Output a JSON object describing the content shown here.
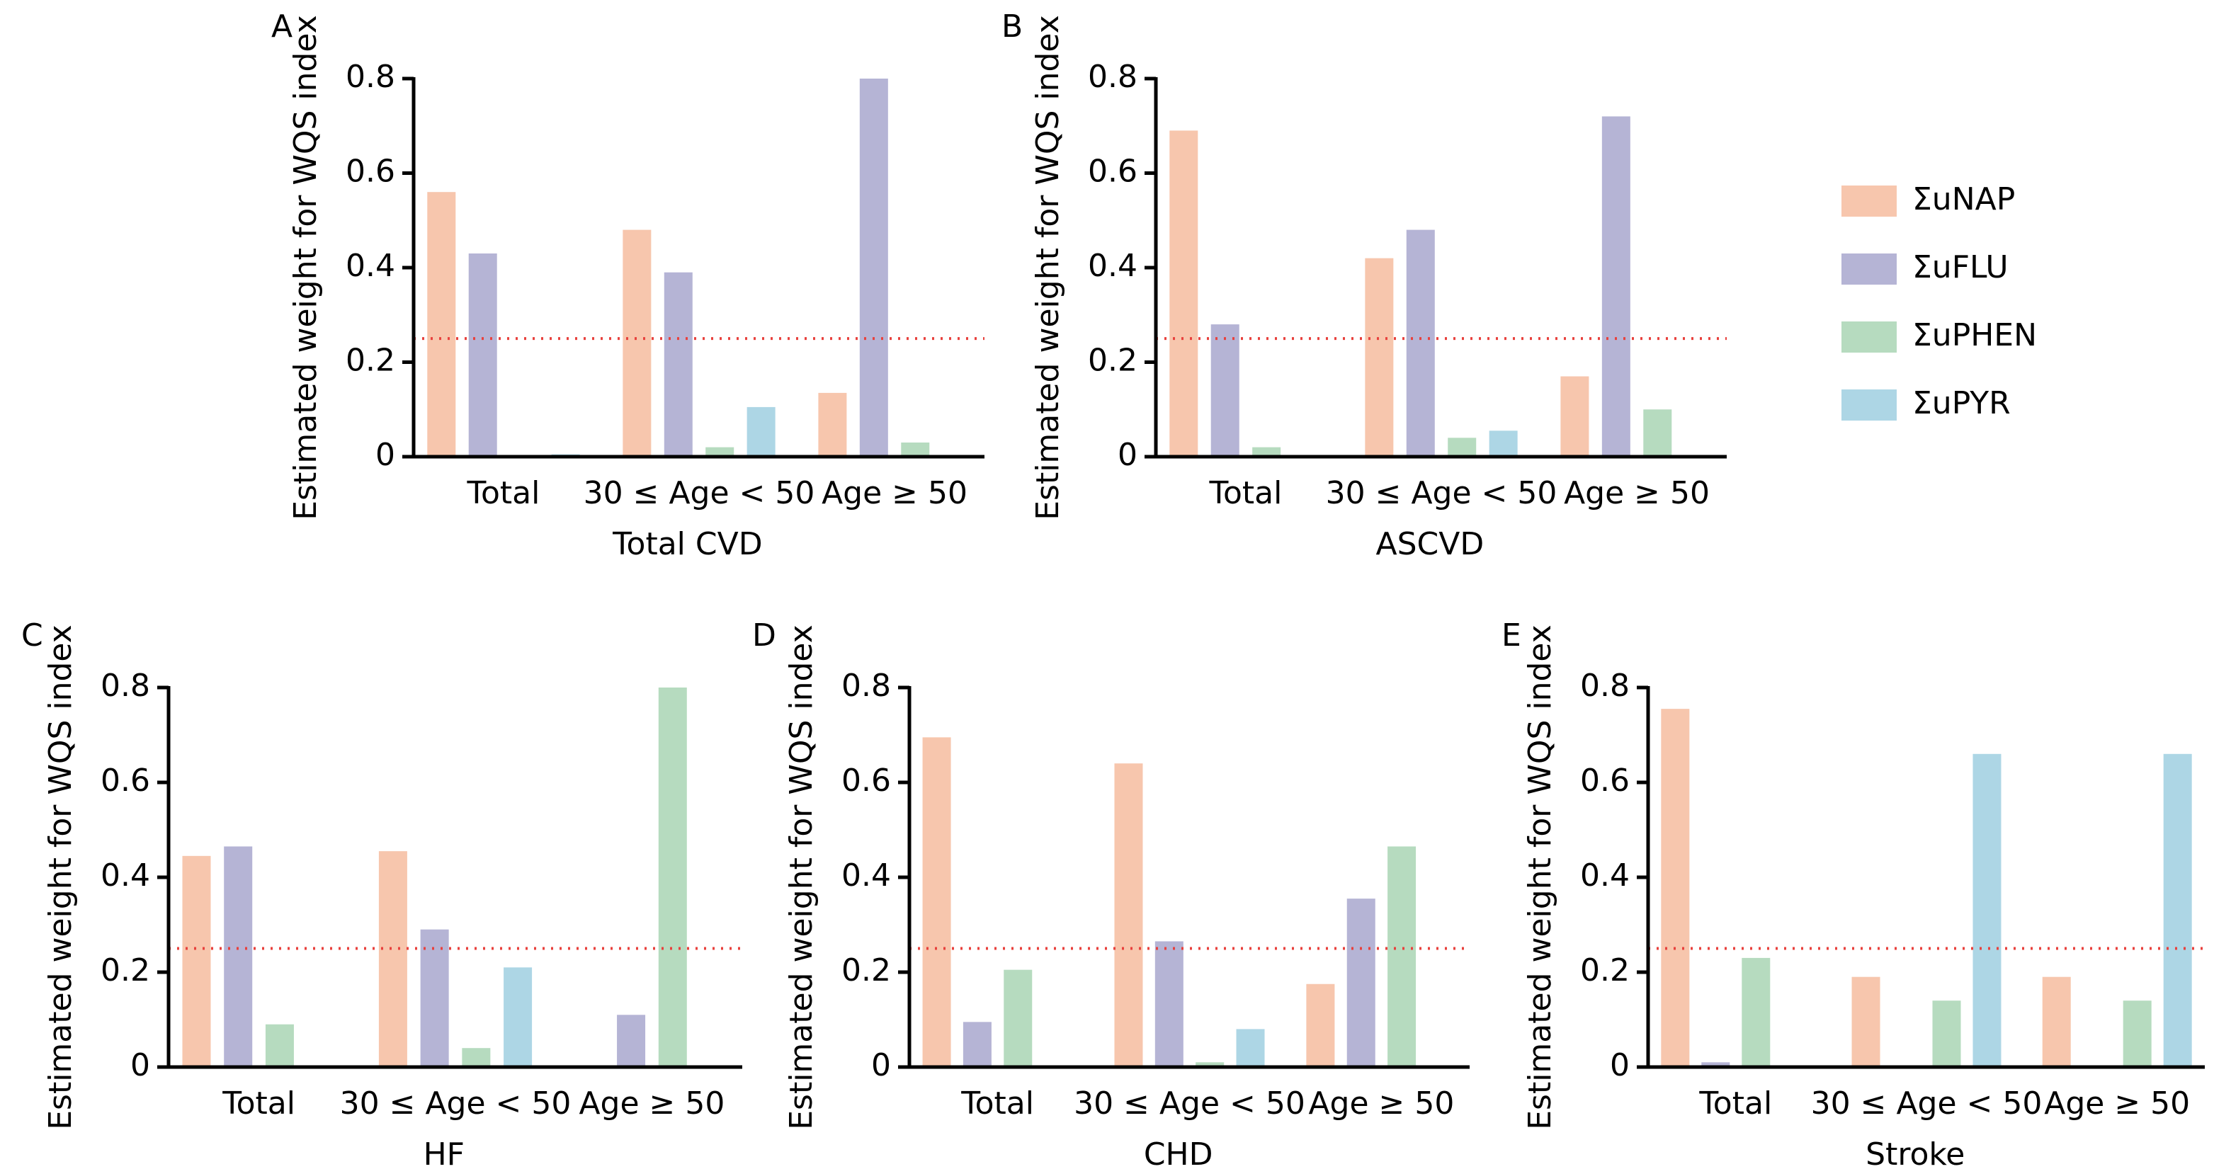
{
  "chart_data": [
    {
      "type": "bar",
      "panel": "A",
      "title": "Total CVD",
      "ylabel": "Estimated weight for WQS index",
      "categories": [
        "Total",
        "30 ≤ Age < 50",
        "Age ≥ 50"
      ],
      "series": [
        {
          "name": "ΣuNAP",
          "color": "#f7c6ad",
          "values": [
            0.56,
            0.48,
            0.135
          ]
        },
        {
          "name": "ΣuFLU",
          "color": "#b5b4d5",
          "values": [
            0.43,
            0.39,
            0.8
          ]
        },
        {
          "name": "ΣuPHEN",
          "color": "#b6dbbf",
          "values": [
            0,
            0.02,
            0.03
          ]
        },
        {
          "name": "ΣuPYR",
          "color": "#add6e5",
          "values": [
            0.005,
            0.105,
            0
          ]
        }
      ],
      "ylim": [
        0,
        0.8
      ],
      "yticks": [
        0,
        0.2,
        0.4,
        0.6,
        0.8
      ],
      "reference_line": 0.25,
      "reference_color": "#e8413d"
    },
    {
      "type": "bar",
      "panel": "B",
      "title": "ASCVD",
      "ylabel": "Estimated weight for WQS index",
      "categories": [
        "Total",
        "30 ≤ Age < 50",
        "Age ≥ 50"
      ],
      "series": [
        {
          "color": "#f7c6ad",
          "values": [
            0.69,
            0.42,
            0.17
          ]
        },
        {
          "color": "#b5b4d5",
          "values": [
            0.28,
            0.48,
            0.72
          ]
        },
        {
          "color": "#b6dbbf",
          "values": [
            0.02,
            0.04,
            0.1
          ]
        },
        {
          "color": "#add6e5",
          "values": [
            0,
            0.055,
            0
          ]
        }
      ],
      "ylim": [
        0,
        0.8
      ],
      "yticks": [
        0,
        0.2,
        0.4,
        0.6,
        0.8
      ],
      "reference_line": 0.25,
      "reference_color": "#e8413d"
    },
    {
      "type": "bar",
      "panel": "C",
      "title": "HF",
      "ylabel": "Estimated weight for WQS index",
      "categories": [
        "Total",
        "30 ≤ Age < 50",
        "Age ≥ 50"
      ],
      "series": [
        {
          "color": "#f7c6ad",
          "values": [
            0.445,
            0.455,
            0
          ]
        },
        {
          "color": "#b5b4d5",
          "values": [
            0.465,
            0.29,
            0.11
          ]
        },
        {
          "color": "#b6dbbf",
          "values": [
            0.09,
            0.04,
            0.8
          ]
        },
        {
          "color": "#add6e5",
          "values": [
            0,
            0.21,
            0
          ]
        }
      ],
      "ylim": [
        0,
        0.8
      ],
      "yticks": [
        0,
        0.2,
        0.4,
        0.6,
        0.8
      ],
      "reference_line": 0.25,
      "reference_color": "#e8413d"
    },
    {
      "type": "bar",
      "panel": "D",
      "title": "CHD",
      "ylabel": "Estimated weight for WQS index",
      "categories": [
        "Total",
        "30 ≤ Age < 50",
        "Age ≥ 50"
      ],
      "series": [
        {
          "color": "#f7c6ad",
          "values": [
            0.695,
            0.64,
            0.175
          ]
        },
        {
          "color": "#b5b4d5",
          "values": [
            0.095,
            0.265,
            0.355
          ]
        },
        {
          "color": "#b6dbbf",
          "values": [
            0.205,
            0.01,
            0.465
          ]
        },
        {
          "color": "#add6e5",
          "values": [
            0,
            0.08,
            0
          ]
        }
      ],
      "ylim": [
        0,
        0.8
      ],
      "yticks": [
        0,
        0.2,
        0.4,
        0.6,
        0.8
      ],
      "reference_line": 0.25,
      "reference_color": "#e8413d"
    },
    {
      "type": "bar",
      "panel": "E",
      "title": "Stroke",
      "ylabel": "Estimated weight for WQS index",
      "categories": [
        "Total",
        "30 ≤ Age < 50",
        "Age ≥ 50"
      ],
      "series": [
        {
          "color": "#f7c6ad",
          "values": [
            0.755,
            0.19,
            0.19
          ]
        },
        {
          "color": "#b5b4d5",
          "values": [
            0.01,
            0,
            0
          ]
        },
        {
          "color": "#b6dbbf",
          "values": [
            0.23,
            0.14,
            0.14
          ]
        },
        {
          "color": "#add6e5",
          "values": [
            0,
            0.66,
            0.66
          ]
        }
      ],
      "ylim": [
        0,
        0.8
      ],
      "yticks": [
        0,
        0.2,
        0.4,
        0.6,
        0.8
      ],
      "reference_line": 0.25,
      "reference_color": "#e8413d"
    }
  ]
}
